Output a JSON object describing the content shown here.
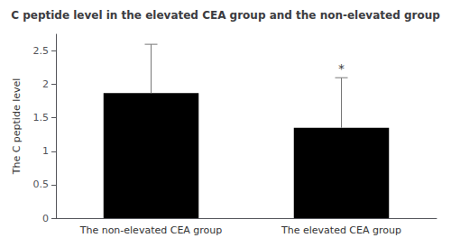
{
  "chart_data": {
    "type": "bar",
    "title": "C peptide level in the elevated CEA group and the non-elevated group",
    "ylabel": "The C peptide level",
    "categories": [
      "The non-elevated CEA group",
      "The elevated CEA group"
    ],
    "values": [
      1.87,
      1.35
    ],
    "errors_upper": [
      0.73,
      0.75
    ],
    "color": "#000000",
    "ylim": [
      0,
      2.75
    ],
    "yticks": [
      0,
      0.5,
      1.0,
      1.5,
      2.0,
      2.5
    ],
    "grid": false,
    "annotations": [
      {
        "text": "*",
        "category": "The elevated CEA group"
      }
    ]
  }
}
